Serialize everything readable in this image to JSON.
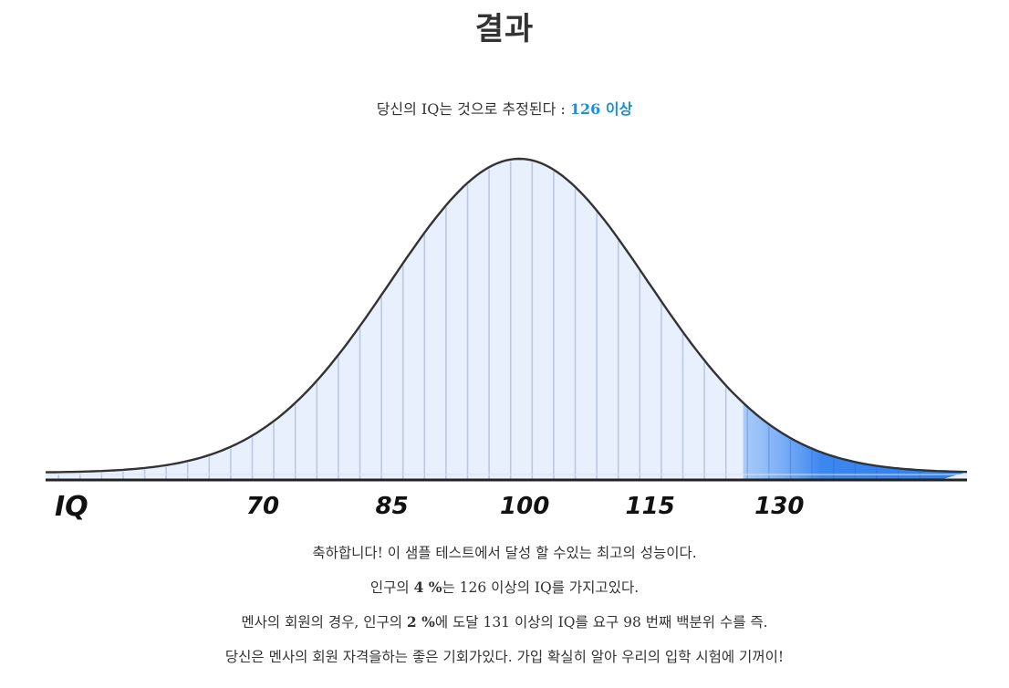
{
  "header": {
    "title": "결과"
  },
  "result": {
    "prefix": "당신의 IQ는 것으로 추정된다 :",
    "value": "126 이상",
    "highlight_color": "#1a8ee0"
  },
  "chart_data": {
    "type": "area",
    "distribution": "normal",
    "xlabel": "IQ",
    "tick_labels": [
      "70",
      "85",
      "100",
      "115",
      "130"
    ],
    "ticks": [
      70,
      85,
      100,
      115,
      130
    ],
    "mean": 100,
    "sd": 15,
    "highlight_from": 126,
    "fill_color": "#e8f0fd",
    "highlight_color": "#2f7fee",
    "line_color": "#333333",
    "grid": true
  },
  "description": {
    "line1": "축하합니다! 이 샘플 테스트에서 달성 할 수있는 최고의 성능이다.",
    "line2_pre": "인구의 ",
    "line2_pct": "4 %",
    "line2_post": "는 126 이상의 IQ를 가지고있다.",
    "line3_pre": "멘사의 회원의 경우, 인구의 ",
    "line3_pct": "2 %",
    "line3_post": "에 도달 131 이상의 IQ를 요구 98 번째 백분위 수를 즉.",
    "line4": "당신은 멘사의 회원 자격을하는 좋은 기회가있다. 가입 확실히 알아 우리의 입학 시험에 기꺼이!"
  }
}
